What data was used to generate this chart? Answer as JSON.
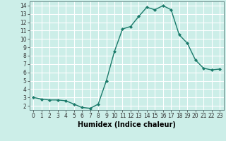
{
  "x": [
    0,
    1,
    2,
    3,
    4,
    5,
    6,
    7,
    8,
    9,
    10,
    11,
    12,
    13,
    14,
    15,
    16,
    17,
    18,
    19,
    20,
    21,
    22,
    23
  ],
  "y": [
    3.0,
    2.8,
    2.7,
    2.7,
    2.6,
    2.2,
    1.8,
    1.7,
    2.2,
    5.0,
    8.5,
    11.2,
    11.5,
    12.7,
    13.8,
    13.5,
    14.0,
    13.5,
    10.5,
    9.5,
    7.5,
    6.5,
    6.3,
    6.4
  ],
  "line_color": "#1a7a6a",
  "marker": "D",
  "markersize": 2.0,
  "linewidth": 1.0,
  "xlabel": "Humidex (Indice chaleur)",
  "xlim": [
    -0.5,
    23.5
  ],
  "ylim": [
    1.5,
    14.5
  ],
  "yticks": [
    2,
    3,
    4,
    5,
    6,
    7,
    8,
    9,
    10,
    11,
    12,
    13,
    14
  ],
  "xticks": [
    0,
    1,
    2,
    3,
    4,
    5,
    6,
    7,
    8,
    9,
    10,
    11,
    12,
    13,
    14,
    15,
    16,
    17,
    18,
    19,
    20,
    21,
    22,
    23
  ],
  "bg_color": "#cceee8",
  "grid_color": "#ffffff",
  "tick_fontsize": 5.5,
  "xlabel_fontsize": 7.0
}
